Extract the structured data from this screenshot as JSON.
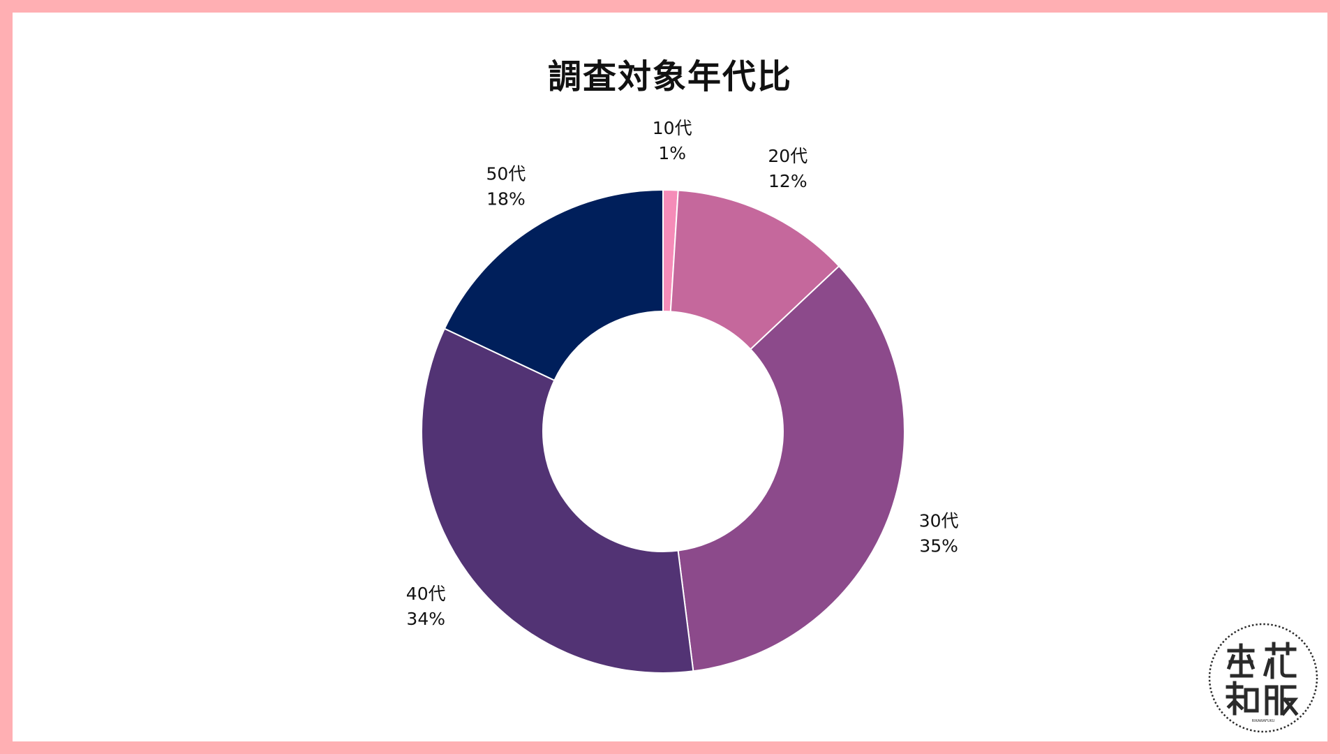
{
  "chart_data": {
    "type": "pie",
    "style": "donut",
    "title": "調査対象年代比",
    "categories": [
      "10代",
      "20代",
      "30代",
      "40代",
      "50代"
    ],
    "values": [
      1,
      12,
      35,
      34,
      18
    ],
    "value_labels": [
      "1%",
      "12%",
      "35%",
      "34%",
      "18%"
    ],
    "colors": [
      "#F58CB8",
      "#C5689C",
      "#8C4A8B",
      "#523374",
      "#001F5B"
    ],
    "legend": "none"
  },
  "colors": {
    "frame": "#FFAFB3",
    "background": "#FFFFFF"
  },
  "logo": {
    "text": "梨花和服",
    "subtext": "RIKAWAFUKU",
    "icon": "seal-stamp-icon"
  }
}
